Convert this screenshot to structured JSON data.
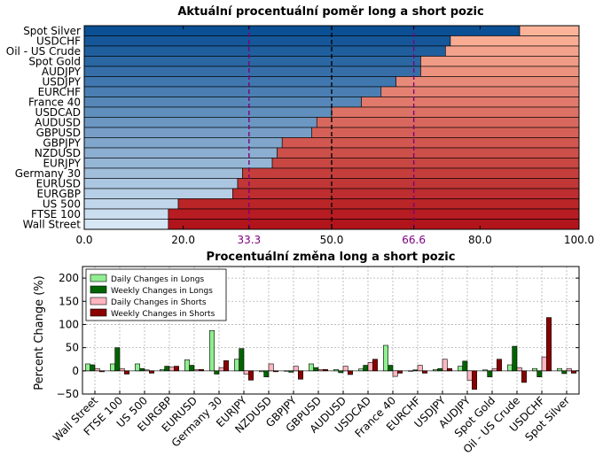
{
  "chart_data": [
    {
      "type": "bar",
      "orientation": "horizontal",
      "stacked": true,
      "title": "Aktuální procentuální poměr long a short pozic",
      "categories": [
        "Spot Silver",
        "USDCHF",
        "Oil - US Crude",
        "Spot Gold",
        "AUDJPY",
        "USDJPY",
        "EURCHF",
        "France 40",
        "USDCAD",
        "AUDUSD",
        "GBPUSD",
        "GBPJPY",
        "NZDUSD",
        "EURJPY",
        "Germany 30",
        "EURUSD",
        "EURGBP",
        "US 500",
        "FTSE 100",
        "Wall Street"
      ],
      "series": [
        {
          "values": [
            88,
            74,
            73,
            68,
            68,
            63,
            60,
            56,
            50,
            47,
            46,
            40,
            39,
            38,
            32,
            31,
            30,
            19,
            17,
            17
          ]
        },
        {
          "values": [
            12,
            26,
            27,
            32,
            32,
            37,
            40,
            44,
            50,
            53,
            54,
            60,
            61,
            62,
            68,
            69,
            70,
            81,
            83,
            83
          ]
        }
      ],
      "xlim": [
        0,
        100
      ],
      "xticks": [
        "0.0",
        "20.0",
        "33.3",
        "50.0",
        "66.6",
        "80.0",
        "100.0"
      ],
      "reference_lines": [
        33.3,
        50,
        66.6
      ],
      "reference_colors": {
        "33.3": "#800080",
        "50": "#000000",
        "66.6": "#800080"
      }
    },
    {
      "type": "bar",
      "orientation": "vertical",
      "title": "Procentuální změna long a short pozic",
      "ylabel": "Percent Change (%)",
      "ylim": [
        -50,
        225
      ],
      "yticks": [
        "−50",
        "0",
        "50",
        "100",
        "150",
        "200"
      ],
      "grid": true,
      "legend_position": "top-left",
      "categories": [
        "Wall Street",
        "FTSE 100",
        "US 500",
        "EURGBP",
        "EURUSD",
        "Germany 30",
        "EURJPY",
        "NZDUSD",
        "GBPJPY",
        "GBPUSD",
        "AUDUSD",
        "USDCAD",
        "France 40",
        "EURCHF",
        "USDJPY",
        "AUDJPY",
        "Spot Gold",
        "Oil - US Crude",
        "USDCHF",
        "Spot Silver"
      ],
      "series": [
        {
          "name": "Daily Changes in Longs",
          "color": "#90ee90",
          "values": [
            15,
            15,
            15,
            3,
            24,
            87,
            25,
            -2,
            0,
            15,
            3,
            4,
            55,
            0,
            3,
            10,
            2,
            13,
            5,
            5
          ]
        },
        {
          "name": "Weekly Changes in Longs",
          "color": "#006400",
          "values": [
            13,
            50,
            5,
            10,
            12,
            -7,
            48,
            -13,
            -3,
            7,
            -4,
            12,
            12,
            2,
            5,
            21,
            -13,
            53,
            -13,
            -6
          ]
        },
        {
          "name": "Daily Changes in Shorts",
          "color": "#ffb6c1",
          "values": [
            5,
            5,
            2,
            8,
            3,
            7,
            -7,
            15,
            10,
            3,
            10,
            18,
            -12,
            12,
            25,
            -20,
            5,
            7,
            30,
            5
          ]
        },
        {
          "name": "Weekly Changes in Shorts",
          "color": "#8b0000",
          "values": [
            -2,
            -7,
            -5,
            10,
            3,
            22,
            -20,
            -2,
            -18,
            3,
            -8,
            25,
            -5,
            -5,
            5,
            -40,
            25,
            -25,
            115,
            -5
          ]
        }
      ]
    }
  ]
}
